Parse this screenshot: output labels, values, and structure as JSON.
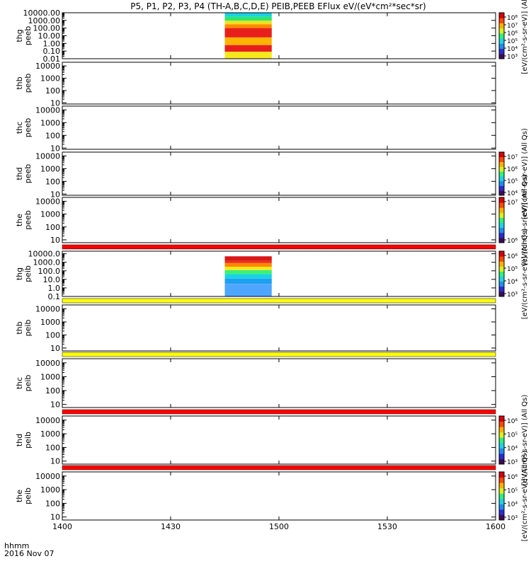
{
  "chart_data": {
    "type": "heatmap",
    "title": "P5, P1, P2, P3, P4 (TH-A,B,C,D,E) PEIB,PEEB EFlux eV/(eV*cm²*sec*sr)",
    "x_axis": {
      "range_hhmm": [
        "1400",
        "1600"
      ],
      "ticks": [
        "1400",
        "1430",
        "1500",
        "1530",
        "1600"
      ],
      "label": "hhmm",
      "date": "2016 Nov 07"
    },
    "panels": [
      {
        "probe": "thg",
        "species": "peeb",
        "ylim": [
          0.01,
          10000
        ],
        "yticks": [
          "10000.00",
          "1000.00",
          "100.00",
          "10.00",
          "1.00",
          "0.10",
          "0.01"
        ],
        "data_span": [
          "1445",
          "1458"
        ],
        "bands": [
          {
            "from": 3000,
            "to": 10000,
            "color": "#19d2e6"
          },
          {
            "from": 900,
            "to": 3000,
            "color": "#2ee86a"
          },
          {
            "from": 300,
            "to": 900,
            "color": "#f0e020"
          },
          {
            "from": 100,
            "to": 300,
            "color": "#ff8a00"
          },
          {
            "from": 6,
            "to": 100,
            "color": "#e8201c"
          },
          {
            "from": 0.6,
            "to": 6,
            "color": "#ffb400"
          },
          {
            "from": 0.08,
            "to": 0.6,
            "color": "#e8201c"
          },
          {
            "from": 0.01,
            "to": 0.08,
            "color": "#f7e81c"
          }
        ],
        "colorbar": {
          "ticks": [
            "10⁸",
            "10⁷",
            "10⁶",
            "10⁵",
            "10⁴",
            "10³"
          ],
          "label": "[eV/(cm²-s-sr-eV)] (All"
        }
      },
      {
        "probe": "thb",
        "species": "peeb",
        "ylim": [
          8,
          20000
        ],
        "yticks": [
          "10000",
          "1000",
          "100",
          "10"
        ],
        "colorbar": null
      },
      {
        "probe": "thc",
        "species": "peeb",
        "ylim": [
          8,
          20000
        ],
        "yticks": [
          "10000",
          "1000",
          "100",
          "10"
        ],
        "colorbar": null
      },
      {
        "probe": "thd",
        "species": "peeb",
        "ylim": [
          8,
          20000
        ],
        "yticks": [
          "10000",
          "1000",
          "100",
          "10"
        ],
        "colorbar": {
          "ticks": [
            "10⁷",
            "10⁶",
            "10⁵",
            "10⁴"
          ],
          "label": "[eV/(cm²-s-sr-eV)] (All Qs)"
        }
      },
      {
        "probe": "the",
        "species": "peeb",
        "ylim": [
          6,
          20000
        ],
        "yticks": [
          "10000",
          "1000",
          "100",
          "10"
        ],
        "colorbar": {
          "ticks": [
            "10⁷",
            "10⁶"
          ],
          "label": "[eV/(cm²-s-sr-eV)] (All Qs)"
        }
      },
      {
        "probe": "thg",
        "species": "peib",
        "ylim": [
          0.1,
          20000
        ],
        "yticks": [
          "10000.0",
          "1000.0",
          "100.0",
          "10.0",
          "1.0",
          "0.1"
        ],
        "data_span": [
          "1445",
          "1458"
        ],
        "bands": [
          {
            "from": 5000,
            "to": 20000,
            "color": "#ffffff"
          },
          {
            "from": 1500,
            "to": 5000,
            "color": "#d81818"
          },
          {
            "from": 800,
            "to": 1500,
            "color": "#e83020"
          },
          {
            "from": 300,
            "to": 800,
            "color": "#ff8a00"
          },
          {
            "from": 120,
            "to": 300,
            "color": "#f7e81c"
          },
          {
            "from": 40,
            "to": 120,
            "color": "#3cf07a"
          },
          {
            "from": 12,
            "to": 40,
            "color": "#19d2e6"
          },
          {
            "from": 3,
            "to": 12,
            "color": "#1ea0f0"
          },
          {
            "from": 0.1,
            "to": 3,
            "color": "#4fa6ff"
          }
        ],
        "colorbar": {
          "ticks": [
            "10⁶",
            "10⁵",
            "10⁴",
            "10³"
          ],
          "label": "[eV/(cm²-s-sr-eV)] (All Qs)"
        }
      },
      {
        "probe": "thb",
        "species": "peib",
        "ylim": [
          6,
          20000
        ],
        "yticks": [
          "10000",
          "1000",
          "100",
          "10"
        ],
        "colorbar": null
      },
      {
        "probe": "thc",
        "species": "peib",
        "ylim": [
          6,
          20000
        ],
        "yticks": [
          "10000",
          "1000",
          "100",
          "10"
        ],
        "colorbar": null
      },
      {
        "probe": "thd",
        "species": "peib",
        "ylim": [
          6,
          20000
        ],
        "yticks": [
          "10000",
          "1000",
          "100",
          "10"
        ],
        "colorbar": {
          "ticks": [
            "10⁶",
            "10⁵",
            "10⁴",
            "10³"
          ],
          "label": "[eV/(cm²-s-sr-eV)] (All Qs)"
        }
      },
      {
        "probe": "the",
        "species": "peib",
        "ylim": [
          6,
          20000
        ],
        "yticks": [
          "10000",
          "1000",
          "100",
          "10"
        ],
        "colorbar": {
          "ticks": [
            "10⁶",
            "10⁵",
            "10⁴",
            "10³"
          ],
          "label": "[eV/(cm²-s-sr-eV)] (All Qs)"
        }
      }
    ],
    "separator_bars": [
      {
        "after_panel": 4,
        "color": "#ff0000"
      },
      {
        "after_panel": 5,
        "color": "#ffff00"
      },
      {
        "after_panel": 6,
        "color": "#ffff00"
      },
      {
        "after_panel": 7,
        "color": "#ff0000"
      },
      {
        "after_panel": 8,
        "color": "#ff0000"
      }
    ]
  }
}
